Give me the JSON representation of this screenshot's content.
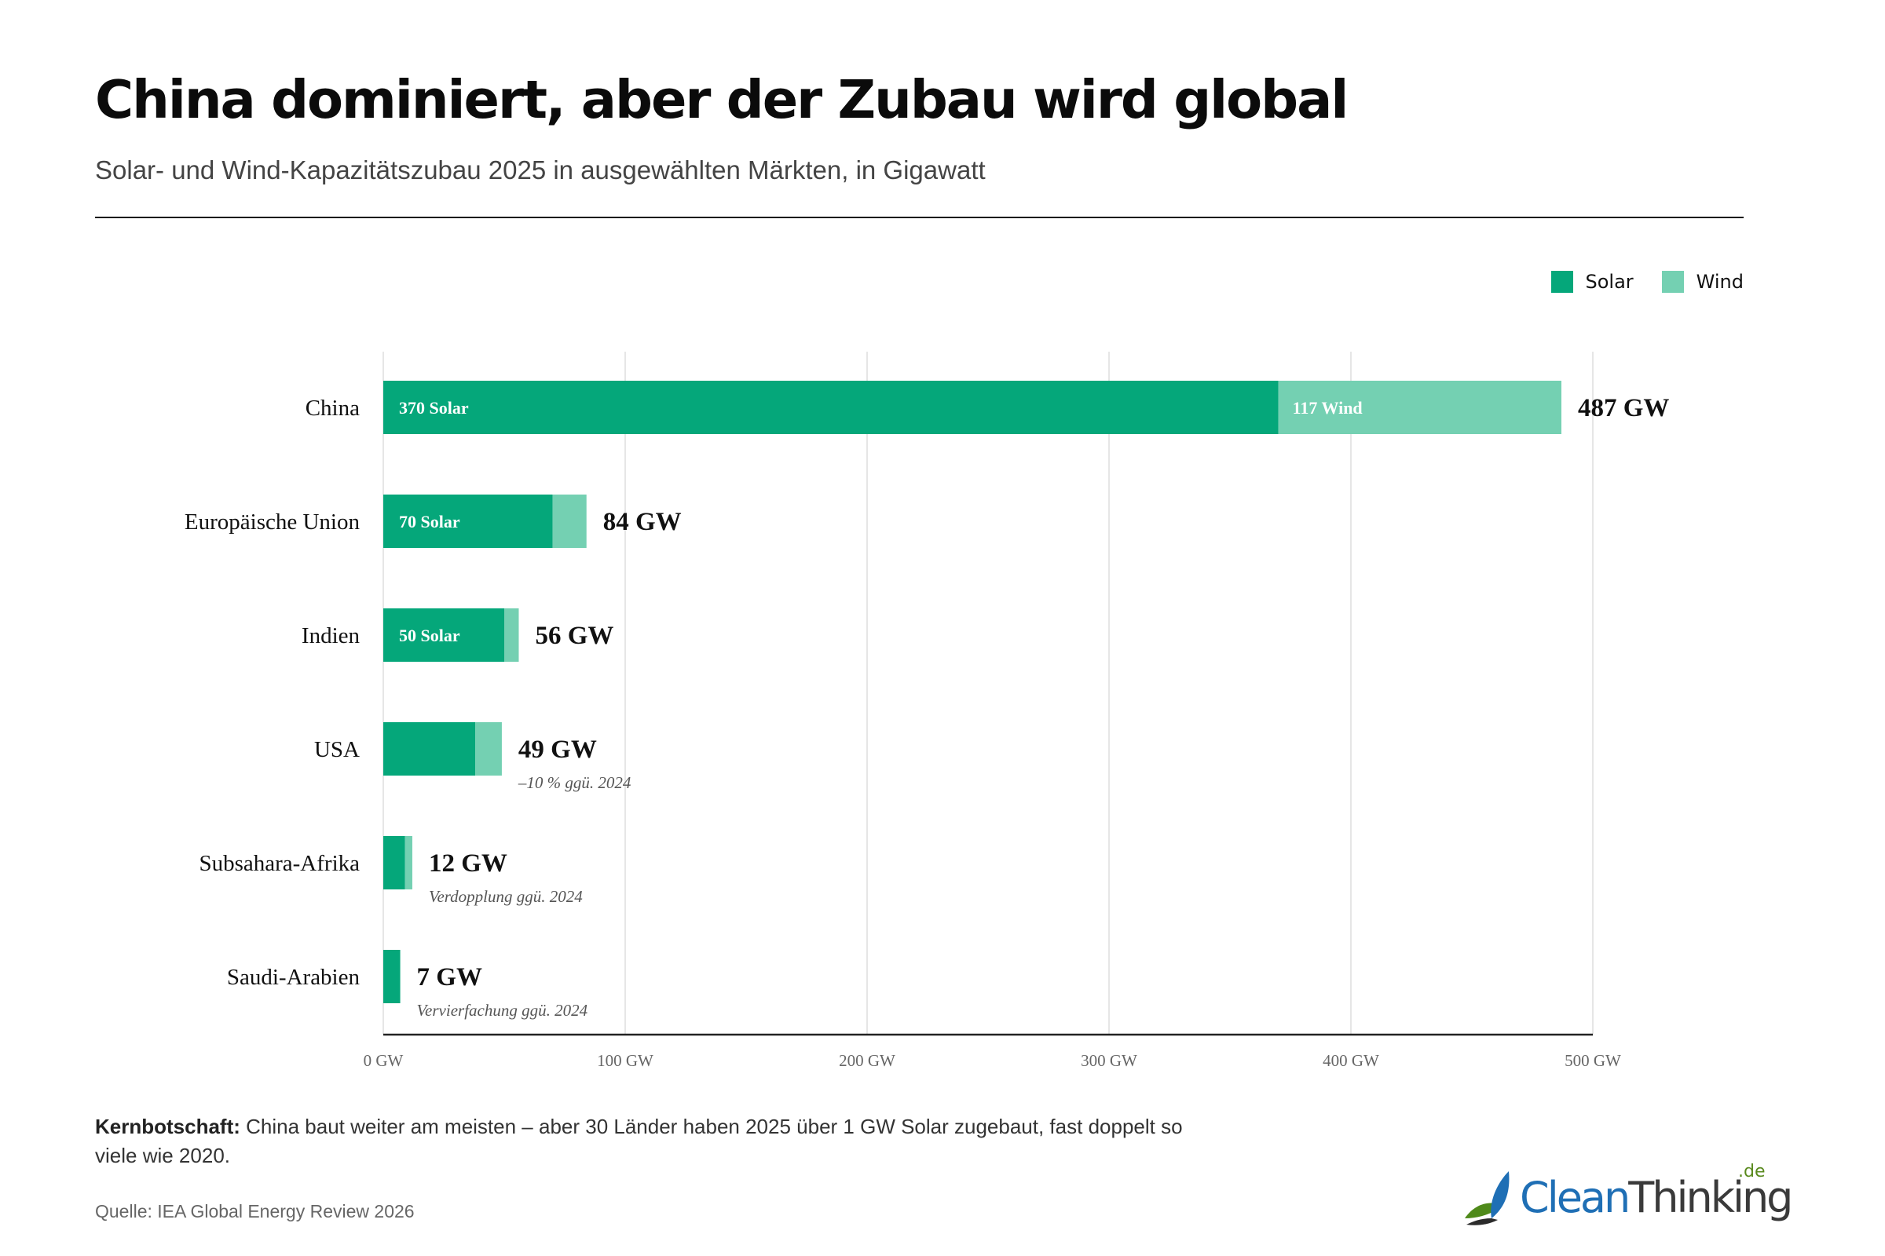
{
  "title": "China dominiert, aber der Zubau wird global",
  "subtitle": "Solar- und Wind-Kapazitätszubau 2025 in ausgewählten Märkten, in Gigawatt",
  "legend": {
    "solar_label": "Solar",
    "wind_label": "Wind",
    "solar_color": "#05a77a",
    "wind_color": "#74d0b2"
  },
  "chart_data": {
    "type": "bar",
    "orientation": "horizontal",
    "stacked": true,
    "categories": [
      "China",
      "Europäische Union",
      "Indien",
      "USA",
      "Subsahara-Afrika",
      "Saudi-Arabien"
    ],
    "series": [
      {
        "name": "Solar",
        "values": [
          370,
          70,
          50,
          38,
          9,
          7
        ],
        "color": "#05a77a"
      },
      {
        "name": "Wind",
        "values": [
          117,
          14,
          6,
          11,
          3,
          0
        ],
        "color": "#74d0b2"
      }
    ],
    "segment_labels": {
      "solar": [
        "370 Solar",
        "70 Solar",
        "50 Solar",
        "",
        "",
        ""
      ],
      "wind": [
        "117 Wind",
        "",
        "",
        "",
        "",
        ""
      ]
    },
    "totals": [
      487,
      84,
      56,
      49,
      12,
      7
    ],
    "total_labels": [
      "487 GW",
      "84 GW",
      "56 GW",
      "49 GW",
      "12 GW",
      "7 GW"
    ],
    "annotations": [
      "",
      "",
      "",
      "–10 % ggü. 2024",
      "Verdopplung ggü. 2024",
      "Vervierfachung ggü. 2024"
    ],
    "xlim": [
      0,
      500
    ],
    "xticks": [
      0,
      100,
      200,
      300,
      400,
      500
    ],
    "xtick_labels": [
      "0 GW",
      "100 GW",
      "200 GW",
      "300 GW",
      "400 GW",
      "500 GW"
    ],
    "grid": true,
    "legend_position": "top-right"
  },
  "note": {
    "label": "Kernbotschaft:",
    "text": " China baut weiter am meisten – aber 30 Länder haben 2025 über 1 GW Solar zugebaut, fast doppelt so viele wie 2020."
  },
  "source": "Quelle: IEA Global Energy Review 2026",
  "logo": {
    "clean": "Clean",
    "thinking": "Thinking",
    "de": ".de"
  }
}
